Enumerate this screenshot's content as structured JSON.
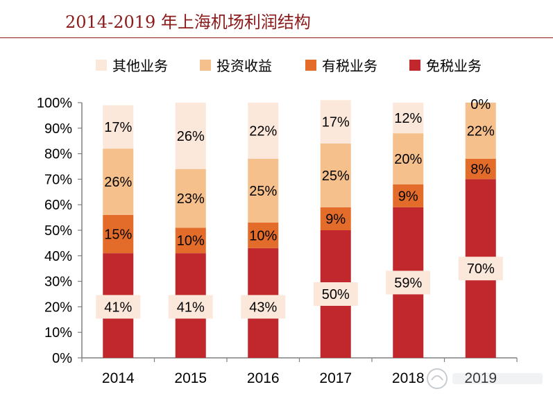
{
  "title": "2014-2019 年上海机场利润结构",
  "chart_data": {
    "type": "bar",
    "stacked": true,
    "categories": [
      "2014",
      "2015",
      "2016",
      "2017",
      "2018",
      "2019"
    ],
    "ylim": [
      0,
      100
    ],
    "yticks": [
      "0%",
      "10%",
      "20%",
      "30%",
      "40%",
      "50%",
      "60%",
      "70%",
      "80%",
      "90%",
      "100%"
    ],
    "legend_position": "top",
    "series": [
      {
        "name": "免税业务",
        "color": "#c0282d",
        "values": [
          41,
          41,
          43,
          50,
          59,
          70
        ]
      },
      {
        "name": "有税业务",
        "color": "#e36c2a",
        "values": [
          15,
          10,
          10,
          9,
          9,
          8
        ]
      },
      {
        "name": "投资收益",
        "color": "#f5c08c",
        "values": [
          26,
          23,
          25,
          25,
          20,
          22
        ]
      },
      {
        "name": "其他业务",
        "color": "#fce8da",
        "values": [
          17,
          26,
          22,
          17,
          12,
          0
        ]
      }
    ],
    "legend_order": [
      "其他业务",
      "投资收益",
      "有税业务",
      "免税业务"
    ],
    "data_labels": [
      [
        "41%",
        "41%",
        "43%",
        "50%",
        "59%",
        "70%"
      ],
      [
        "15%",
        "10%",
        "10%",
        "9%",
        "9%",
        "8%"
      ],
      [
        "26%",
        "23%",
        "25%",
        "25%",
        "20%",
        "22%"
      ],
      [
        "17%",
        "26%",
        "22%",
        "17%",
        "12%",
        "0%"
      ]
    ]
  }
}
